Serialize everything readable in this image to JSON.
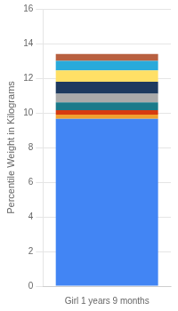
{
  "chart_data": {
    "type": "bar",
    "stacked": true,
    "categories": [
      "Girl 1 years 9 months"
    ],
    "ylabel": "Percentile Weight in Kilograms",
    "series": [
      {
        "color": "#4285F4",
        "values": [
          9.65
        ]
      },
      {
        "color": "#F0A030",
        "values": [
          0.25
        ]
      },
      {
        "color": "#D63B10",
        "values": [
          0.25
        ]
      },
      {
        "color": "#1A7A8A",
        "values": [
          0.45
        ]
      },
      {
        "color": "#AAAAAA",
        "values": [
          0.5
        ]
      },
      {
        "color": "#1E3A5F",
        "values": [
          0.7
        ]
      },
      {
        "color": "#FFE066",
        "values": [
          0.65
        ]
      },
      {
        "color": "#29AADB",
        "values": [
          0.55
        ]
      },
      {
        "color": "#B86040",
        "values": [
          0.4
        ]
      }
    ],
    "ylim": [
      0,
      16
    ],
    "yticks": [
      0,
      2,
      4,
      6,
      8,
      10,
      12,
      14,
      16
    ],
    "grid": true
  }
}
